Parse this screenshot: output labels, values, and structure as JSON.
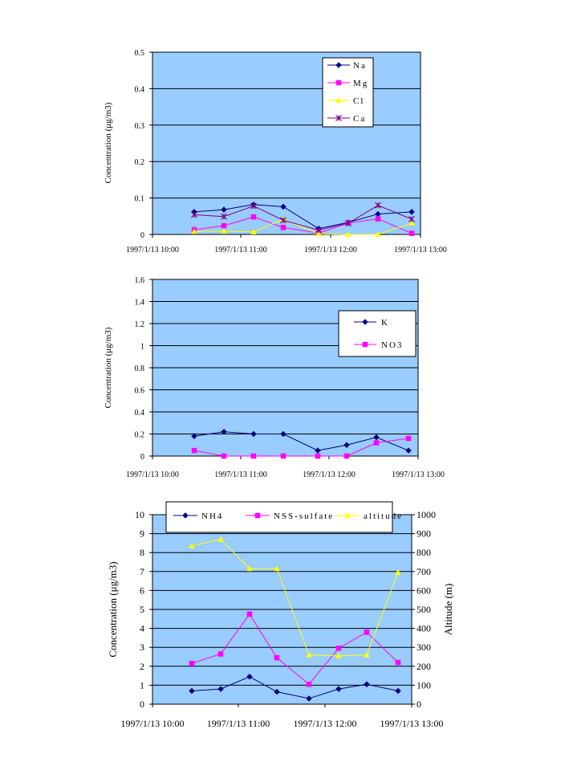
{
  "chart_data": [
    {
      "type": "line",
      "x_ticks": [
        "1997/1/13 10:00",
        "1997/1/13 11:00",
        "1997/1/13 12:00",
        "1997/1/13 13:00"
      ],
      "ylabel": "Concentration (μg/m3)",
      "ylim": [
        0,
        0.5
      ],
      "y_ticks": [
        "0",
        "0.1",
        "0.2",
        "0.3",
        "0.4",
        "0.5"
      ],
      "grid": true,
      "legend": "top-right",
      "x": [
        "10:20",
        "10:40",
        "11:00",
        "11:20",
        "11:40",
        "12:00",
        "12:20",
        "12:40"
      ],
      "series": [
        {
          "name": "Na",
          "color": "#000080",
          "marker": "diamond",
          "values": [
            0.062,
            0.068,
            0.082,
            0.076,
            0.016,
            0.033,
            0.056,
            0.062
          ]
        },
        {
          "name": "Mg",
          "color": "#ff00ff",
          "marker": "square",
          "values": [
            0.013,
            0.024,
            0.048,
            0.019,
            0.004,
            0.031,
            0.043,
            0.003
          ]
        },
        {
          "name": "Cl",
          "color": "#ffff00",
          "marker": "triangle",
          "values": [
            0.008,
            0.009,
            0.007,
            0.042,
            0.002,
            0.0,
            0.0,
            0.031
          ]
        },
        {
          "name": "Ca",
          "color": "#800080",
          "marker": "star",
          "values": [
            0.054,
            0.049,
            0.078,
            0.039,
            0.012,
            0.031,
            0.08,
            0.042
          ]
        }
      ]
    },
    {
      "type": "line",
      "x_ticks": [
        "1997/1/13 10:00",
        "1997/1/13 11:00",
        "1997/1/13 12:00",
        "1997/1/13 13:00"
      ],
      "ylabel": "Concentration (μg/m3)",
      "ylim": [
        0,
        1.6
      ],
      "y_ticks": [
        "0",
        "0.2",
        "0.4",
        "0.6",
        "0.8",
        "1",
        "1.2",
        "1.4",
        "1.6"
      ],
      "grid": true,
      "legend": "right",
      "x": [
        "10:20",
        "10:40",
        "11:00",
        "11:20",
        "11:40",
        "12:00",
        "12:20",
        "12:40"
      ],
      "series": [
        {
          "name": "K",
          "color": "#000080",
          "marker": "diamond",
          "values": [
            0.18,
            0.22,
            0.2,
            0.2,
            0.05,
            0.1,
            0.17,
            0.05
          ]
        },
        {
          "name": "NO3",
          "color": "#ff00ff",
          "marker": "square",
          "values": [
            0.05,
            0.0,
            0.0,
            0.0,
            0.0,
            0.0,
            0.12,
            0.16
          ]
        }
      ]
    },
    {
      "type": "line",
      "x_ticks": [
        "1997/1/13 10:00",
        "1997/1/13 11:00",
        "1997/1/13 12:00",
        "1997/1/13 13:00"
      ],
      "ylabel": "Concentration (μg/m3)",
      "y2label": "Altitude (m)",
      "ylim": [
        0,
        10
      ],
      "y2lim": [
        0,
        1000
      ],
      "y_ticks": [
        "0",
        "1",
        "2",
        "3",
        "4",
        "5",
        "6",
        "7",
        "8",
        "9",
        "10"
      ],
      "y2_ticks": [
        "0",
        "100",
        "200",
        "300",
        "400",
        "500",
        "600",
        "700",
        "800",
        "900",
        "1000"
      ],
      "grid": true,
      "legend": "top",
      "x": [
        "10:20",
        "10:40",
        "11:00",
        "11:20",
        "11:40",
        "12:00",
        "12:20",
        "12:40"
      ],
      "series": [
        {
          "name": "NH4",
          "color": "#000080",
          "marker": "diamond",
          "axis": "left",
          "values": [
            0.7,
            0.8,
            1.45,
            0.65,
            0.3,
            0.8,
            1.05,
            0.7
          ]
        },
        {
          "name": "NSS-sulfate",
          "color": "#ff00ff",
          "marker": "square",
          "axis": "left",
          "values": [
            2.15,
            2.65,
            4.75,
            2.45,
            1.05,
            2.95,
            3.8,
            2.2
          ]
        },
        {
          "name": "altitude",
          "color": "#ffff00",
          "marker": "triangle",
          "axis": "right",
          "values": [
            835,
            870,
            715,
            715,
            260,
            255,
            260,
            695
          ]
        }
      ]
    }
  ]
}
